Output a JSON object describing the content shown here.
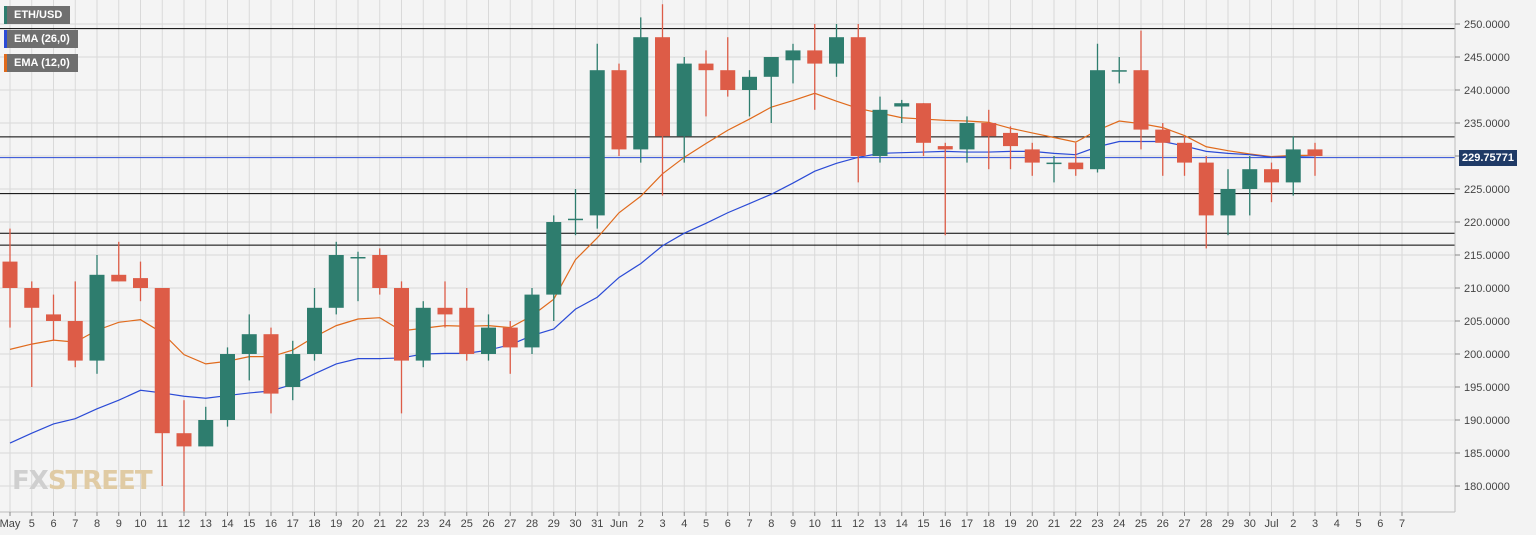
{
  "legend": [
    {
      "label": "ETH/USD",
      "color": "#2e7d6e"
    },
    {
      "label": "EMA (26,0)",
      "color": "#2b4bd6"
    },
    {
      "label": "EMA (12,0)",
      "color": "#e06a1c"
    }
  ],
  "watermark": {
    "part1": "FX",
    "part2": "STREET"
  },
  "current_price_label": "229.75771",
  "colors": {
    "up": "#2e7d6e",
    "down": "#dd5c47",
    "ema26": "#2b4bd6",
    "ema12": "#e06a1c",
    "hline": "#000000",
    "current": "#2b4bd6",
    "grid": "#d9d9d9"
  },
  "chart_data": {
    "type": "candlestick",
    "title": "",
    "series_name": "ETH/USD",
    "ylim": [
      176,
      252
    ],
    "y_ticks": [
      180,
      185,
      190,
      195,
      200,
      205,
      210,
      215,
      220,
      225,
      230,
      235,
      240,
      245,
      250
    ],
    "y_tick_labels": [
      "180.0000",
      "185.0000",
      "190.0000",
      "195.0000",
      "200.0000",
      "205.0000",
      "210.0000",
      "215.0000",
      "220.0000",
      "225.0000",
      "230.0000",
      "235.0000",
      "240.0000",
      "245.0000",
      "250.0000"
    ],
    "x_labels": [
      "May",
      "5",
      "6",
      "7",
      "8",
      "9",
      "10",
      "11",
      "12",
      "13",
      "14",
      "15",
      "16",
      "17",
      "18",
      "19",
      "20",
      "21",
      "22",
      "23",
      "24",
      "25",
      "26",
      "27",
      "28",
      "29",
      "30",
      "31",
      "Jun",
      "2",
      "3",
      "4",
      "5",
      "6",
      "7",
      "8",
      "9",
      "10",
      "11",
      "12",
      "13",
      "14",
      "15",
      "16",
      "17",
      "18",
      "19",
      "20",
      "21",
      "22",
      "23",
      "24",
      "25",
      "26",
      "27",
      "28",
      "29",
      "30",
      "Jul",
      "2",
      "3",
      "4",
      "5",
      "6",
      "7"
    ],
    "grid": true,
    "horizontal_levels": [
      249.3,
      232.9,
      224.3,
      218.3,
      216.5
    ],
    "current_price": 229.75771,
    "candles": [
      {
        "o": 214,
        "h": 219,
        "l": 204,
        "c": 210
      },
      {
        "o": 210,
        "h": 211,
        "l": 195,
        "c": 207
      },
      {
        "o": 206,
        "h": 209,
        "l": 202,
        "c": 205
      },
      {
        "o": 205,
        "h": 211,
        "l": 198,
        "c": 199
      },
      {
        "o": 199,
        "h": 215,
        "l": 197,
        "c": 212
      },
      {
        "o": 212,
        "h": 217,
        "l": 211,
        "c": 211
      },
      {
        "o": 211.5,
        "h": 214,
        "l": 208,
        "c": 210
      },
      {
        "o": 210,
        "h": 210,
        "l": 180,
        "c": 188
      },
      {
        "o": 188,
        "h": 193,
        "l": 176,
        "c": 186
      },
      {
        "o": 186,
        "h": 192,
        "l": 186,
        "c": 190
      },
      {
        "o": 190,
        "h": 201,
        "l": 189,
        "c": 200
      },
      {
        "o": 200,
        "h": 206,
        "l": 196,
        "c": 203
      },
      {
        "o": 203,
        "h": 204,
        "l": 191,
        "c": 194
      },
      {
        "o": 195,
        "h": 202,
        "l": 193,
        "c": 200
      },
      {
        "o": 200,
        "h": 210,
        "l": 199,
        "c": 207
      },
      {
        "o": 207,
        "h": 217,
        "l": 206,
        "c": 215
      },
      {
        "o": 214.7,
        "h": 215.5,
        "l": 208,
        "c": 214.7
      },
      {
        "o": 215,
        "h": 216,
        "l": 209,
        "c": 210
      },
      {
        "o": 210,
        "h": 211,
        "l": 191,
        "c": 199
      },
      {
        "o": 199,
        "h": 208,
        "l": 198,
        "c": 207
      },
      {
        "o": 207,
        "h": 211,
        "l": 204,
        "c": 206
      },
      {
        "o": 207,
        "h": 210,
        "l": 199,
        "c": 200
      },
      {
        "o": 200,
        "h": 206,
        "l": 199,
        "c": 204
      },
      {
        "o": 204,
        "h": 205,
        "l": 197,
        "c": 201
      },
      {
        "o": 201,
        "h": 210,
        "l": 200,
        "c": 209
      },
      {
        "o": 209,
        "h": 221,
        "l": 205,
        "c": 220
      },
      {
        "o": 220.5,
        "h": 225,
        "l": 218,
        "c": 220.5
      },
      {
        "o": 221,
        "h": 247,
        "l": 219,
        "c": 243
      },
      {
        "o": 243,
        "h": 244,
        "l": 230,
        "c": 231
      },
      {
        "o": 231,
        "h": 251,
        "l": 229,
        "c": 248
      },
      {
        "o": 248,
        "h": 253,
        "l": 224,
        "c": 233
      },
      {
        "o": 233,
        "h": 245,
        "l": 229,
        "c": 244
      },
      {
        "o": 244,
        "h": 246,
        "l": 236,
        "c": 243
      },
      {
        "o": 243,
        "h": 248,
        "l": 239,
        "c": 240
      },
      {
        "o": 240,
        "h": 243,
        "l": 236,
        "c": 242
      },
      {
        "o": 242,
        "h": 245,
        "l": 235,
        "c": 245
      },
      {
        "o": 244.5,
        "h": 247,
        "l": 241,
        "c": 246
      },
      {
        "o": 246,
        "h": 250,
        "l": 237,
        "c": 244
      },
      {
        "o": 244,
        "h": 250,
        "l": 242,
        "c": 248
      },
      {
        "o": 248,
        "h": 250,
        "l": 226,
        "c": 230
      },
      {
        "o": 230,
        "h": 239,
        "l": 229,
        "c": 237
      },
      {
        "o": 237.5,
        "h": 238.5,
        "l": 235,
        "c": 238
      },
      {
        "o": 238,
        "h": 238,
        "l": 230,
        "c": 232
      },
      {
        "o": 231.5,
        "h": 232,
        "l": 218,
        "c": 231
      },
      {
        "o": 231,
        "h": 236,
        "l": 229,
        "c": 235
      },
      {
        "o": 235,
        "h": 237,
        "l": 228,
        "c": 233
      },
      {
        "o": 233.5,
        "h": 234.5,
        "l": 228,
        "c": 231.5
      },
      {
        "o": 231,
        "h": 232,
        "l": 227,
        "c": 229
      },
      {
        "o": 229,
        "h": 230,
        "l": 226,
        "c": 229
      },
      {
        "o": 229,
        "h": 232,
        "l": 227,
        "c": 228
      },
      {
        "o": 228,
        "h": 247,
        "l": 227.5,
        "c": 243
      },
      {
        "o": 243,
        "h": 245,
        "l": 241,
        "c": 243
      },
      {
        "o": 243,
        "h": 249,
        "l": 231,
        "c": 234
      },
      {
        "o": 234,
        "h": 235,
        "l": 227,
        "c": 232
      },
      {
        "o": 232,
        "h": 233,
        "l": 227,
        "c": 229
      },
      {
        "o": 229,
        "h": 230,
        "l": 216,
        "c": 221
      },
      {
        "o": 221,
        "h": 228,
        "l": 218,
        "c": 225
      },
      {
        "o": 225,
        "h": 230,
        "l": 221,
        "c": 228
      },
      {
        "o": 228,
        "h": 229,
        "l": 223,
        "c": 226
      },
      {
        "o": 226,
        "h": 233,
        "l": 224,
        "c": 231
      },
      {
        "o": 231,
        "h": 232,
        "l": 227,
        "c": 230
      }
    ],
    "ema26": [
      186.5,
      188,
      189.4,
      190.2,
      191.7,
      193,
      194.5,
      194.1,
      193.6,
      193.3,
      193.7,
      194.1,
      194.4,
      195.4,
      197,
      198.5,
      199.3,
      199.3,
      199.4,
      200,
      200.1,
      200.1,
      200.6,
      201.4,
      202.8,
      203.8,
      206.8,
      208.6,
      211.6,
      213.7,
      216.4,
      218.3,
      219.8,
      221.4,
      222.8,
      224.2,
      225.9,
      227.7,
      228.9,
      229.8,
      230.4,
      230.5,
      230.6,
      230.7,
      230.6,
      230.6,
      230.7,
      230.7,
      230.4,
      230.2,
      231.4,
      232.2,
      232.2,
      232.2,
      231.5,
      230.7,
      230.4,
      230.2,
      229.8,
      229.9,
      229.8
    ],
    "ema12": [
      200.7,
      201.5,
      202.1,
      201.8,
      203.6,
      204.8,
      205.2,
      203.2,
      199.9,
      198.5,
      198.9,
      199.6,
      199.6,
      200.6,
      202.6,
      204.3,
      205.3,
      205.5,
      203.5,
      203.9,
      204.3,
      204.2,
      204.3,
      204,
      205.8,
      208.3,
      214.3,
      217.6,
      221.4,
      223.9,
      227.3,
      229.8,
      231.9,
      233.9,
      235.6,
      237.4,
      238.4,
      239.5,
      238.3,
      237.2,
      236.5,
      235.8,
      235.6,
      235.4,
      235.3,
      235.1,
      234.2,
      233.5,
      232.8,
      232.1,
      233.9,
      235.3,
      234.9,
      234.3,
      233.1,
      231.4,
      230.8,
      230.3,
      229.9,
      230.1,
      230.1
    ]
  }
}
